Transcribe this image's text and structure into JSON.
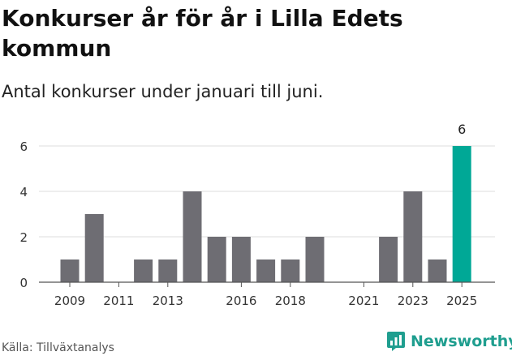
{
  "title": "Konkurser år för år i Lilla Edets kommun",
  "subtitle": "Antal konkurser under januari till juni.",
  "source": "Källa: Tillväxtanalys",
  "brand": {
    "name": "Newsworthy",
    "color": "#1f9e8f",
    "icon": "newsworthy-logo-icon"
  },
  "colors": {
    "bar": "#6e6d73",
    "highlight": "#00a896",
    "grid": "#dddddd",
    "axis": "#555555"
  },
  "chart_data": {
    "type": "bar",
    "title": "Konkurser år för år i Lilla Edets kommun",
    "subtitle": "Antal konkurser under januari till juni.",
    "categories": [
      2009,
      2010,
      2011,
      2012,
      2013,
      2014,
      2015,
      2016,
      2017,
      2018,
      2019,
      2020,
      2021,
      2022,
      2023,
      2024,
      2025
    ],
    "values": [
      1,
      3,
      0,
      1,
      1,
      4,
      2,
      2,
      1,
      1,
      2,
      0,
      0,
      2,
      4,
      1,
      6
    ],
    "highlight_category": 2025,
    "highlight_label": "6",
    "xticks": [
      "2009",
      "2011",
      "2013",
      "2016",
      "2018",
      "2021",
      "2023",
      "2025"
    ],
    "yticks": [
      "0",
      "2",
      "4",
      "6"
    ],
    "ylim": [
      0,
      6
    ],
    "grid": true,
    "xlabel": "",
    "ylabel": ""
  }
}
